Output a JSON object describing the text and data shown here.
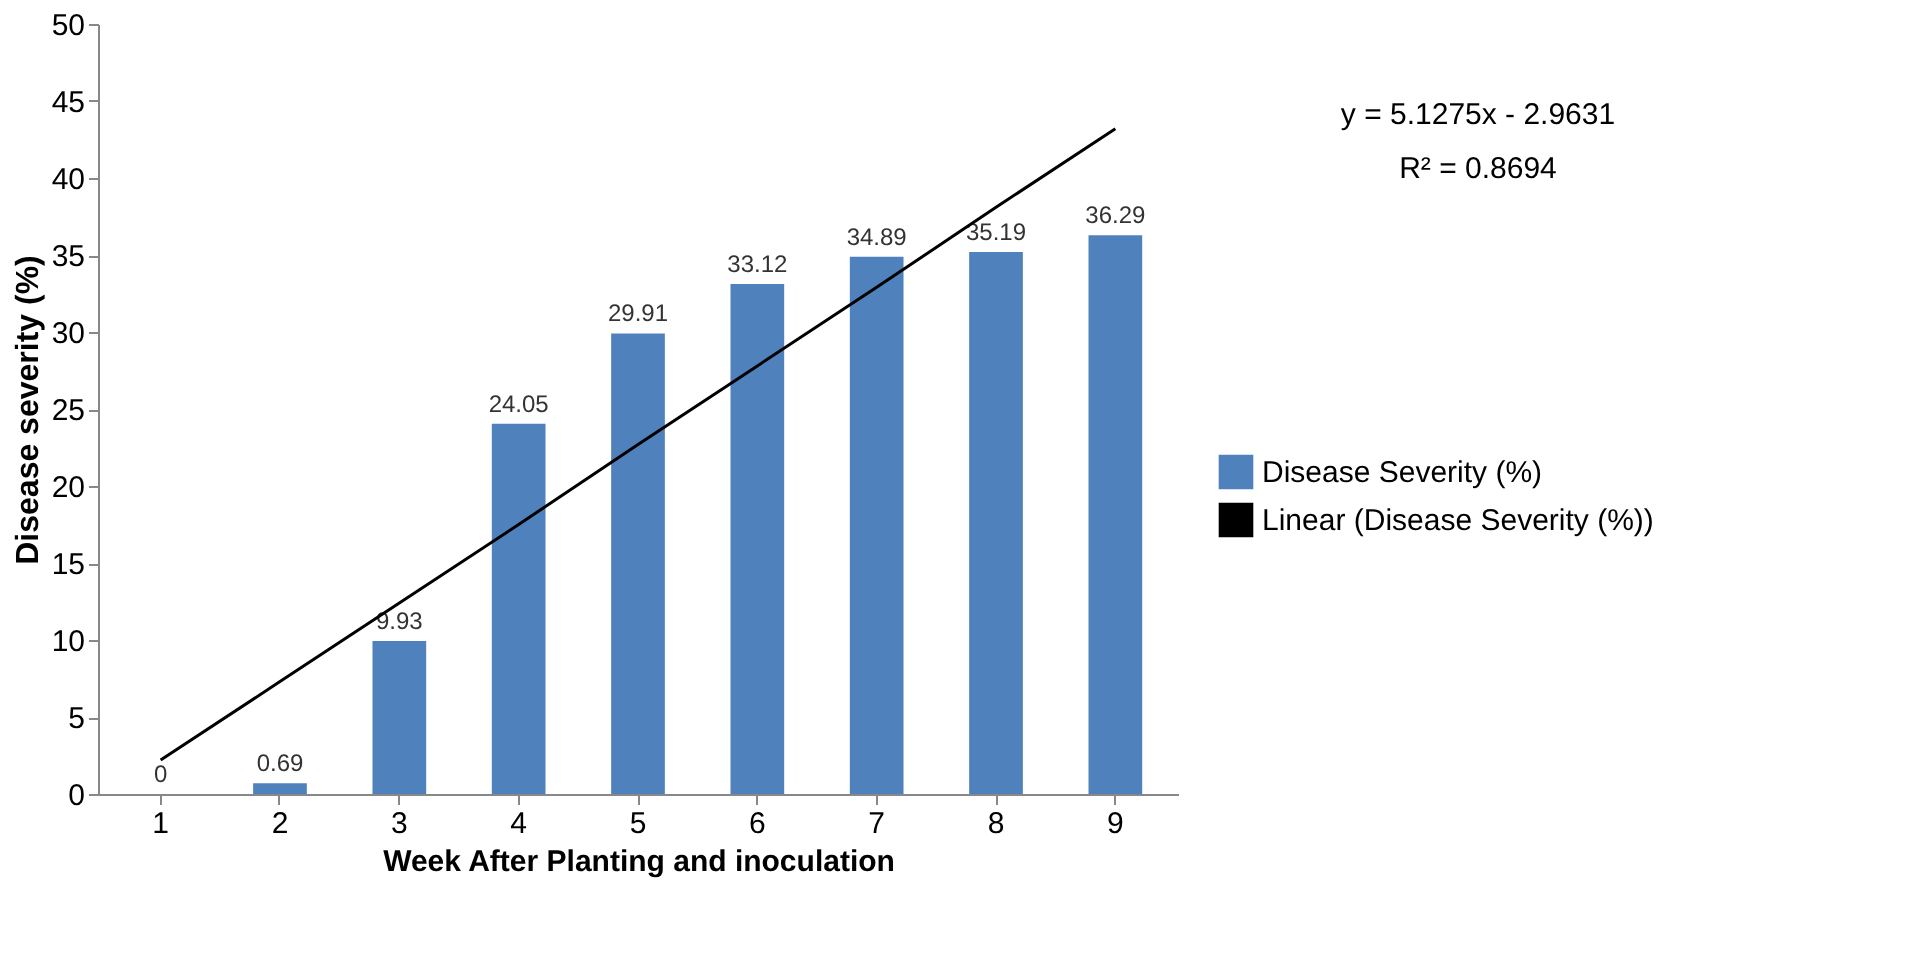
{
  "chart_data": {
    "type": "bar",
    "xlabel": "Week After Planting and inoculation",
    "ylabel": "Disease severity (%)",
    "categories": [
      "1",
      "2",
      "3",
      "4",
      "5",
      "6",
      "7",
      "8",
      "9"
    ],
    "series": [
      {
        "name": "Disease Severity (%)",
        "color": "#4f81bd",
        "values": [
          0,
          0.69,
          9.93,
          24.05,
          29.91,
          33.12,
          34.89,
          35.19,
          36.29
        ],
        "value_labels": [
          "0",
          "0.69",
          "9.93",
          "24.05",
          "29.91",
          "33.12",
          "34.89",
          "35.19",
          "36.29"
        ]
      },
      {
        "name": "Linear (Disease Severity (%))",
        "type": "line",
        "color": "#000000",
        "values": [
          2.2,
          7.3,
          12.4,
          17.5,
          22.7,
          27.8,
          32.9,
          38.1,
          43.2
        ]
      }
    ],
    "ylim": [
      0,
      50
    ],
    "yticks": [
      0,
      5,
      10,
      15,
      20,
      25,
      30,
      35,
      40,
      45,
      50
    ],
    "grid": false,
    "legend": "right",
    "marker": "none",
    "line_style": "solid",
    "annotations": [
      "y = 5.1275x - 2.9631",
      "R² = 0.8694"
    ]
  }
}
